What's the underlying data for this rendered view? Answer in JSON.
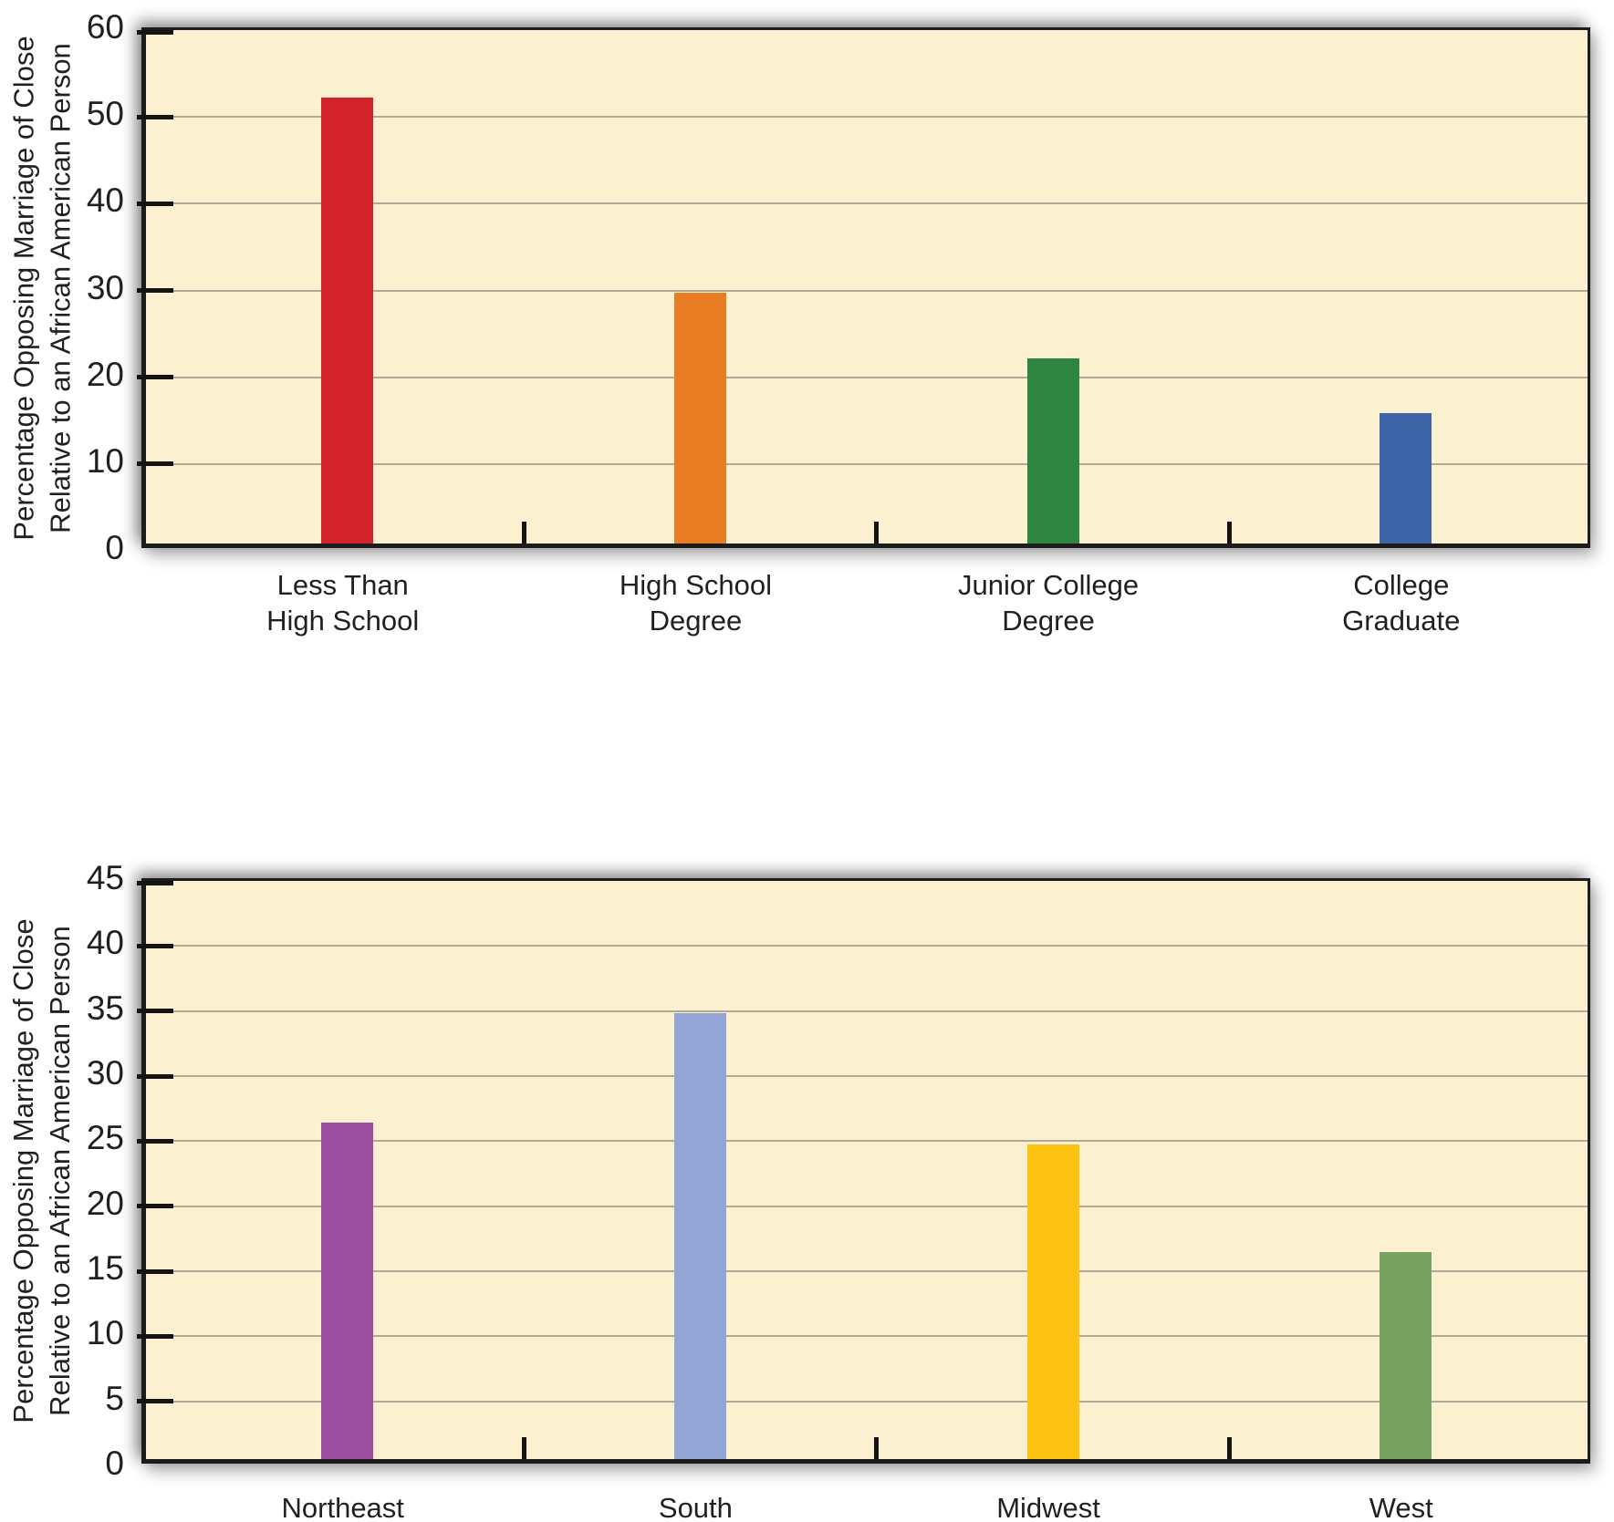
{
  "page": {
    "background": "#ffffff"
  },
  "y_axis_title": {
    "line1": "Percentage Opposing Marriage of Close",
    "line2": "Relative to an African American Person"
  },
  "chart_data": [
    {
      "type": "bar",
      "name": "opposition-by-education",
      "title": "",
      "categories": [
        "Less Than High School",
        "High School Degree",
        "Junior College Degree",
        "College Graduate"
      ],
      "category_label_lines": [
        [
          "Less Than",
          "High School"
        ],
        [
          "High School",
          "Degree"
        ],
        [
          "Junior College",
          "Degree"
        ],
        [
          "College",
          "Graduate"
        ]
      ],
      "values": [
        51.4,
        28.9,
        21.3,
        15.0
      ],
      "bar_colors": [
        "#D2232B",
        "#E87D23",
        "#2E8540",
        "#3C64A7"
      ],
      "xlabel": "",
      "ylabel": "Percentage Opposing Marriage of Close Relative to an African American Person",
      "ylim": [
        0,
        60
      ],
      "ytick_step": 10,
      "yticks": [
        0,
        10,
        20,
        30,
        40,
        50,
        60
      ],
      "grid": true,
      "legend": false,
      "plot_background": "#FBF0D0",
      "gridline_color": "#B3A895",
      "axis_color": "#1C1C1C",
      "text_color": "#231F20"
    },
    {
      "type": "bar",
      "name": "opposition-by-region",
      "title": "",
      "categories": [
        "Northeast",
        "South",
        "Midwest",
        "West"
      ],
      "category_label_lines": [
        [
          "Northeast"
        ],
        [
          "South"
        ],
        [
          "Midwest"
        ],
        [
          "West"
        ]
      ],
      "values": [
        25.9,
        34.3,
        24.2,
        15.9
      ],
      "bar_colors": [
        "#9C4F9F",
        "#92A5D5",
        "#FDC112",
        "#78A25F"
      ],
      "xlabel": "",
      "ylabel": "Percentage Opposing Marriage of Close Relative to an African American Person",
      "ylim": [
        0,
        45
      ],
      "ytick_step": 5,
      "yticks": [
        0,
        5,
        10,
        15,
        20,
        25,
        30,
        35,
        40,
        45
      ],
      "grid": true,
      "legend": false,
      "plot_background": "#FBF0D0",
      "gridline_color": "#B3A895",
      "axis_color": "#1C1C1C",
      "text_color": "#231F20"
    }
  ]
}
